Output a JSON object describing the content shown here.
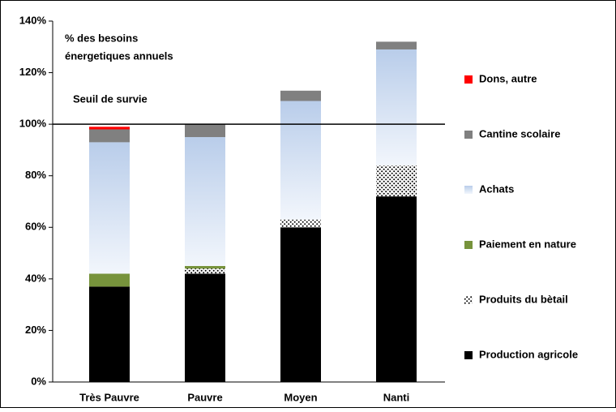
{
  "chart_data": {
    "type": "stacked_bar",
    "annotations": [
      "% des besoins",
      "énergetiques annuels"
    ],
    "threshold": {
      "label": "Seuil de survie",
      "value": 100
    },
    "categories": [
      "Très Pauvre",
      "Pauvre",
      "Moyen",
      "Nanti"
    ],
    "series": [
      {
        "name": "Production agricole",
        "color": "#000000",
        "values": [
          37,
          42,
          60,
          72
        ]
      },
      {
        "name": "Produits du bètail",
        "color": "#000000",
        "pattern": "dots",
        "values": [
          0,
          2,
          3,
          12
        ]
      },
      {
        "name": "Paiement en nature",
        "color": "#77933c",
        "values": [
          5,
          1,
          0,
          0
        ]
      },
      {
        "name": "Achats",
        "color": "#b9cdea",
        "gradient": true,
        "values": [
          51,
          50,
          46,
          45
        ]
      },
      {
        "name": "Cantine scolaire",
        "color": "#808080",
        "values": [
          5,
          5,
          4,
          3
        ]
      },
      {
        "name": "Dons, autre",
        "color": "#ff0000",
        "values": [
          1,
          0,
          0,
          0
        ]
      }
    ],
    "ylim": [
      0,
      140
    ],
    "yticks": [
      {
        "value": 0,
        "label": "0%"
      },
      {
        "value": 20,
        "label": "20%"
      },
      {
        "value": 40,
        "label": "40%"
      },
      {
        "value": 60,
        "label": "60%"
      },
      {
        "value": 80,
        "label": "80%"
      },
      {
        "value": 100,
        "label": "100%"
      },
      {
        "value": 120,
        "label": "120%"
      },
      {
        "value": 140,
        "label": "140%"
      }
    ],
    "legend": "right"
  }
}
